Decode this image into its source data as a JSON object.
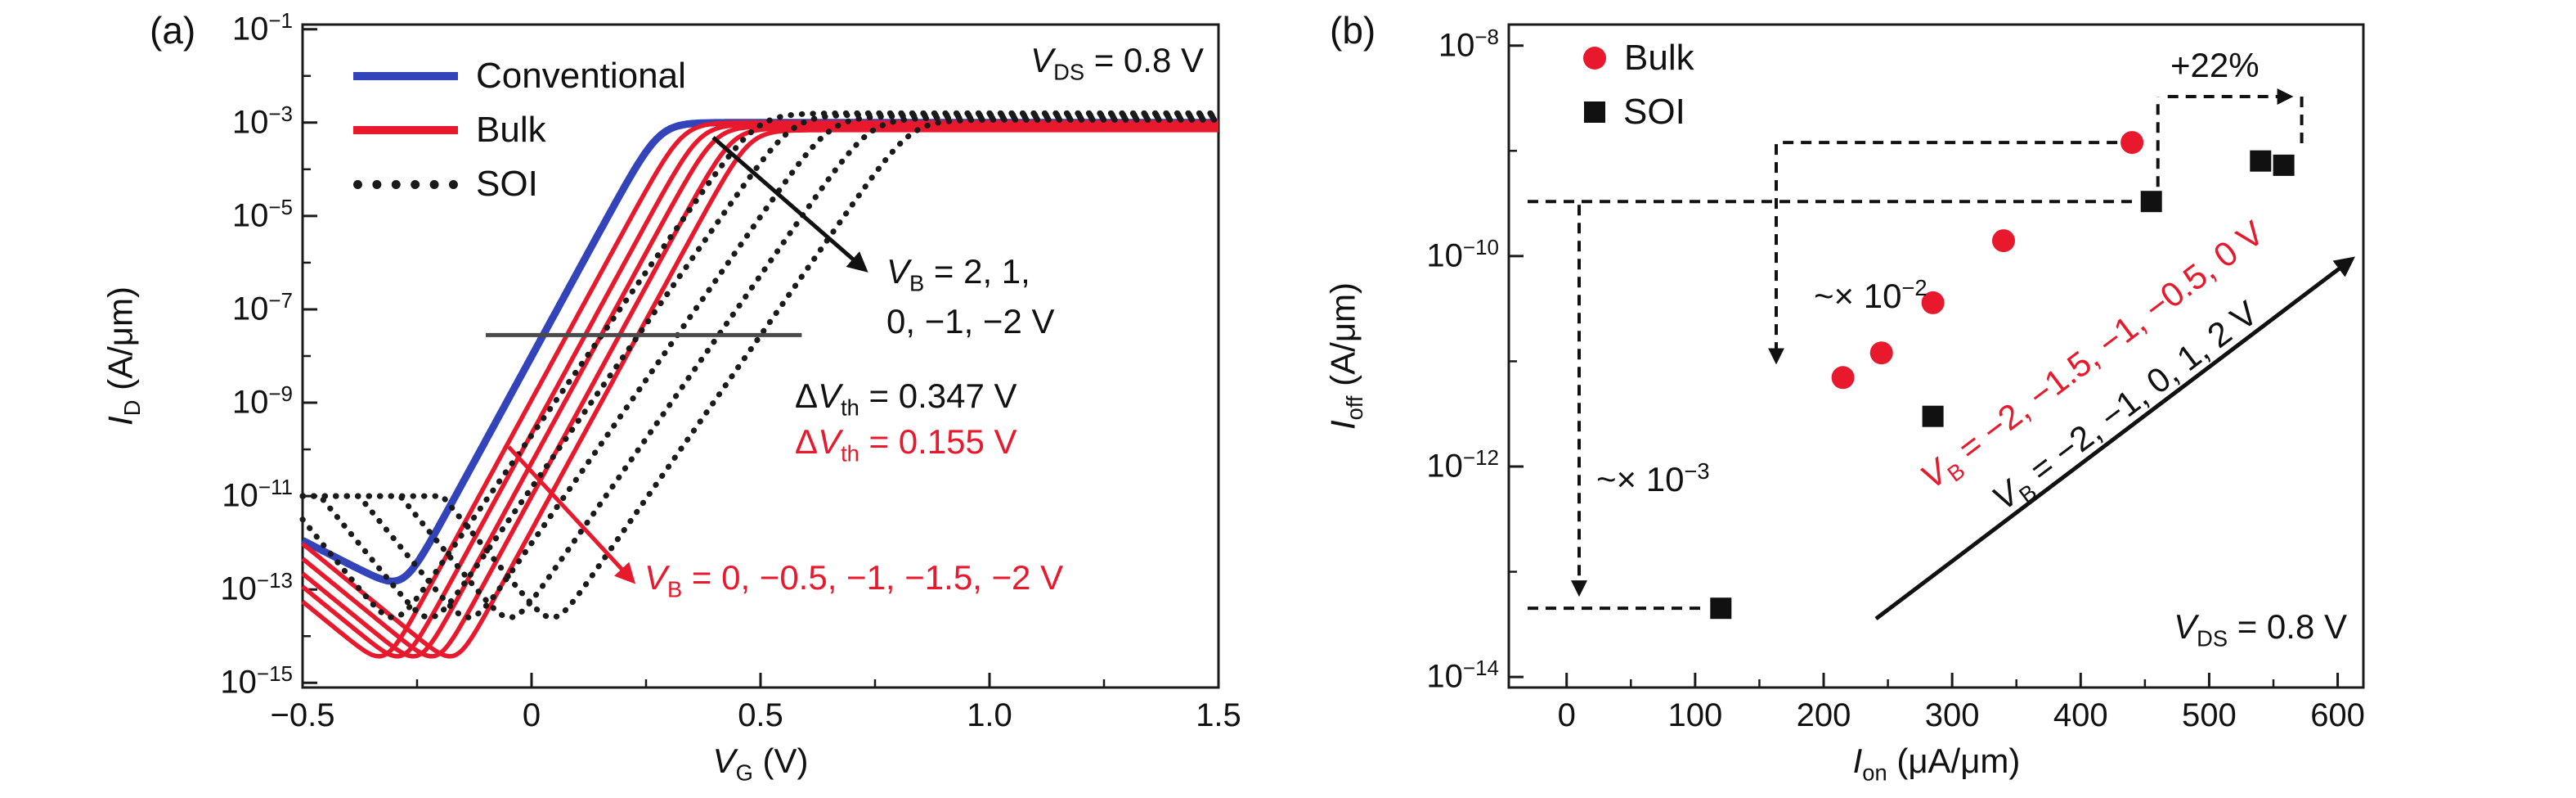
{
  "figure": {
    "panels": {
      "a": {
        "label": "(a)",
        "xlabel": "*V*_{G} (V)",
        "ylabel": "*I*_{D} (A/μm)",
        "legend": [
          {
            "label": "Conventional",
            "color": "#3344bb",
            "style": "solid"
          },
          {
            "label": "Bulk",
            "color": "#e8192c",
            "style": "solid"
          },
          {
            "label": "SOI",
            "color": "#1a1a1a",
            "style": "dotted"
          }
        ],
        "annotations": {
          "vds": "*V*_{DS} = 0.8 V",
          "vb_black": "*V*_{B} = 2, 1,\n0, −1, −2 V",
          "dvth_black": "Δ*V*_{th} = 0.347 V",
          "dvth_red": "Δ*V*_{th} = 0.155 V",
          "vb_red": "*V*_{B} = 0, −0.5, −1, −1.5, −2 V"
        }
      },
      "b": {
        "label": "(b)",
        "xlabel": "*I*_{on} (μA/μm)",
        "ylabel": "*I*_{off} (A/μm)",
        "legend": [
          {
            "label": "Bulk",
            "marker": "circle",
            "color": "#e8192c"
          },
          {
            "label": "SOI",
            "marker": "square",
            "color": "#111111"
          }
        ],
        "annotations": {
          "plus22": "+22%",
          "ratio2": "~× 10^{−2}",
          "ratio3": "~× 10^{−3}",
          "vb_red": "*V*_{B} = −2, −1.5, −1, −0.5, 0 V",
          "vb_black": "*V*_{B} = −2, −1, 0, 1, 2 V",
          "vds": "*V*_{DS} = 0.8 V"
        }
      }
    }
  },
  "chart_data": [
    {
      "panel": "a",
      "type": "line",
      "title": "Transfer characteristics",
      "xlabel": "V_G (V)",
      "ylabel": "I_D (A/um)",
      "x_range": [
        -0.5,
        1.5
      ],
      "y_scale": "log",
      "y_range_exponents": [
        -15,
        -1
      ],
      "x_ticks": [
        -0.5,
        0,
        0.5,
        1.0,
        1.5
      ],
      "x_tick_labels": [
        "−0.5",
        "0",
        "0.5",
        "1.0",
        "1.5"
      ],
      "x_minor_ticks": [
        -0.25,
        0.25,
        0.75,
        1.25
      ],
      "y_tick_exponents": [
        -1,
        -3,
        -5,
        -7,
        -9,
        -11,
        -13,
        -15
      ],
      "y_minor_exponents": [
        -2,
        -4,
        -6,
        -8,
        -10,
        -12,
        -14
      ],
      "vds_v": 0.8,
      "series": [
        {
          "name": "Conventional",
          "color": "#3344bb",
          "style": "solid",
          "line_width": 9,
          "curves": [
            {
              "vb_v": null,
              "vth_min_v": -0.28,
              "log_i_min": -13.05,
              "ss_dec_per_v": 18,
              "log_i_on": -3.0,
              "gidl_dec_per_v": 5,
              "gidl_log_cap": -11.8
            }
          ]
        },
        {
          "name": "Bulk",
          "color": "#e8192c",
          "style": "solid",
          "line_width": 5.5,
          "delta_vth_v": 0.155,
          "curves": [
            {
              "vb_v": 0,
              "vth_min_v": -0.32,
              "log_i_min": -14.7,
              "ss_dec_per_v": 18,
              "log_i_on": -3.0,
              "gidl_dec_per_v": 8,
              "gidl_log_cap": -12.0
            },
            {
              "vb_v": -0.5,
              "vth_min_v": -0.28,
              "log_i_min": -14.7,
              "ss_dec_per_v": 18,
              "log_i_on": -3.04,
              "gidl_dec_per_v": 8,
              "gidl_log_cap": -12.0
            },
            {
              "vb_v": -1,
              "vth_min_v": -0.245,
              "log_i_min": -14.7,
              "ss_dec_per_v": 18,
              "log_i_on": -3.08,
              "gidl_dec_per_v": 8,
              "gidl_log_cap": -12.0
            },
            {
              "vb_v": -1.5,
              "vth_min_v": -0.205,
              "log_i_min": -14.7,
              "ss_dec_per_v": 18,
              "log_i_on": -3.12,
              "gidl_dec_per_v": 8,
              "gidl_log_cap": -12.0
            },
            {
              "vb_v": -2,
              "vth_min_v": -0.165,
              "log_i_min": -14.7,
              "ss_dec_per_v": 18,
              "log_i_on": -3.16,
              "gidl_dec_per_v": 8,
              "gidl_log_cap": -12.0
            }
          ]
        },
        {
          "name": "SOI",
          "color": "#1a1a1a",
          "style": "dotted",
          "line_width": 7,
          "delta_vth_v": 0.347,
          "curves": [
            {
              "vb_v": 2,
              "vth_min_v": -0.3,
              "log_i_min": -13.9,
              "ss_dec_per_v": 14,
              "log_i_on": -2.8,
              "gidl_dec_per_v": 12,
              "gidl_log_cap": -11.0
            },
            {
              "vb_v": 1,
              "vth_min_v": -0.22,
              "log_i_min": -13.9,
              "ss_dec_per_v": 14,
              "log_i_on": -2.83,
              "gidl_dec_per_v": 12,
              "gidl_log_cap": -11.0
            },
            {
              "vb_v": 0,
              "vth_min_v": -0.135,
              "log_i_min": -13.9,
              "ss_dec_per_v": 14,
              "log_i_on": -2.86,
              "gidl_dec_per_v": 12,
              "gidl_log_cap": -11.0
            },
            {
              "vb_v": -1,
              "vth_min_v": -0.045,
              "log_i_min": -13.9,
              "ss_dec_per_v": 14,
              "log_i_on": -2.9,
              "gidl_dec_per_v": 12,
              "gidl_log_cap": -11.0
            },
            {
              "vb_v": -2,
              "vth_min_v": 0.047,
              "log_i_min": -13.9,
              "ss_dec_per_v": 14,
              "log_i_on": -2.94,
              "gidl_dec_per_v": 12,
              "gidl_log_cap": -11.0
            }
          ]
        }
      ],
      "reference_line": {
        "log_i": -7.55,
        "v_from": -0.1,
        "v_to": 0.59,
        "color": "#4a4a4a"
      }
    },
    {
      "panel": "b",
      "type": "scatter",
      "title": "Ioff vs Ion benchmark",
      "xlabel": "I_on (uA/um)",
      "ylabel": "I_off (A/um)",
      "x_range": [
        -45,
        620
      ],
      "y_scale": "log",
      "y_range_exponents": [
        -14.1,
        -7.8
      ],
      "x_ticks": [
        0,
        100,
        200,
        300,
        400,
        500,
        600
      ],
      "x_tick_labels": [
        "0",
        "100",
        "200",
        "300",
        "400",
        "500",
        "600"
      ],
      "x_minor_ticks": [
        50,
        150,
        250,
        350,
        450,
        550
      ],
      "y_tick_exponents": [
        -8,
        -10,
        -12,
        -14
      ],
      "y_minor_exponents": [
        -9,
        -11,
        -13
      ],
      "vds_v": 0.8,
      "improvement_pct": 22,
      "off_ratio_bulk": "~1e-2",
      "off_ratio_soi": "~1e-3",
      "series": [
        {
          "name": "Bulk",
          "marker": "circle",
          "color": "#e8192c",
          "points": [
            {
              "vb_v": -2,
              "ion_ua_um": 215,
              "ioff_a_um": 7e-12
            },
            {
              "vb_v": -1.5,
              "ion_ua_um": 245,
              "ioff_a_um": 1.2e-11
            },
            {
              "vb_v": -1,
              "ion_ua_um": 285,
              "ioff_a_um": 3.6e-11
            },
            {
              "vb_v": -0.5,
              "ion_ua_um": 340,
              "ioff_a_um": 1.4e-10
            },
            {
              "vb_v": 0,
              "ion_ua_um": 440,
              "ioff_a_um": 1.2e-09
            }
          ]
        },
        {
          "name": "SOI",
          "marker": "square",
          "color": "#111111",
          "points": [
            {
              "vb_v": -2,
              "ion_ua_um": 120,
              "ioff_a_um": 4.5e-14
            },
            {
              "vb_v": -1,
              "ion_ua_um": 285,
              "ioff_a_um": 3e-12
            },
            {
              "vb_v": 0,
              "ion_ua_um": 455,
              "ioff_a_um": 3.3e-10
            },
            {
              "vb_v": 1,
              "ion_ua_um": 540,
              "ioff_a_um": 8e-10
            },
            {
              "vb_v": 2,
              "ion_ua_um": 558,
              "ioff_a_um": 7.3e-10
            }
          ]
        }
      ]
    }
  ]
}
